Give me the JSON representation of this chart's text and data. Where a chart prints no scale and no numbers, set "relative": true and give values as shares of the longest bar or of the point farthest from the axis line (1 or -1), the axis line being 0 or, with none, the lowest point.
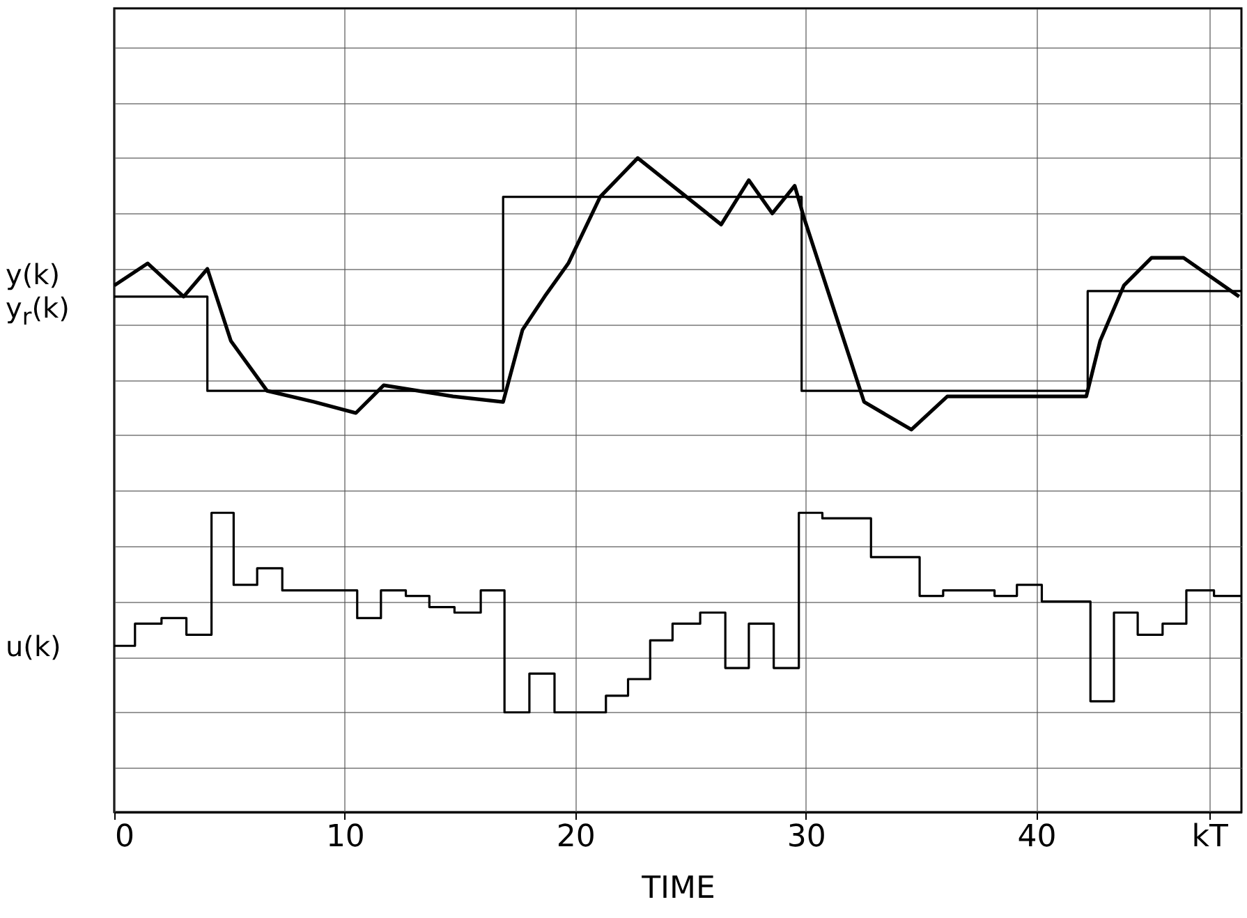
{
  "chart_data": {
    "type": "line",
    "relative": true,
    "xlabel": "TIME",
    "grid": true,
    "xlim": [
      0,
      48.9
    ],
    "xticks": [
      0,
      10,
      20,
      30,
      40,
      {
        "value": 47.5,
        "label": "kT"
      }
    ],
    "series": [
      {
        "name": "y(k)",
        "color": "#000000",
        "x": [
          0,
          1.45,
          3.01,
          4.04,
          5.06,
          6.63,
          8.67,
          10.48,
          11.69,
          14.7,
          16.87,
          17.71,
          18.67,
          19.7,
          21.08,
          22.71,
          24.52,
          26.33,
          27.53,
          28.55,
          29.52,
          29.94,
          30.96,
          32.53,
          34.58,
          36.14,
          39.4,
          42.17,
          42.77,
          43.8,
          45.0,
          46.39,
          48.8
        ],
        "values": [
          0.77,
          0.81,
          0.75,
          0.8,
          0.67,
          0.58,
          0.56,
          0.54,
          0.59,
          0.57,
          0.56,
          0.69,
          0.75,
          0.81,
          0.93,
          1,
          0.94,
          0.88,
          0.96,
          0.9,
          0.95,
          0.89,
          0.76,
          0.56,
          0.51,
          0.57,
          0.57,
          0.57,
          0.67,
          0.77,
          0.82,
          0.82,
          0.75
        ]
      },
      {
        "name": "y$_{r}$(k)",
        "color": "#000000",
        "type": "step",
        "x": [
          0,
          4.04,
          16.87,
          29.82,
          42.23,
          48.9
        ],
        "values": [
          0.75,
          0.58,
          0.93,
          0.58,
          0.76,
          0.76
        ]
      },
      {
        "name": "u(k)",
        "color": "#000000",
        "type": "step",
        "x": [
          0,
          0.9,
          2.05,
          3.13,
          4.22,
          5.18,
          6.2,
          7.29,
          10.54,
          11.57,
          12.65,
          13.67,
          14.76,
          15.9,
          16.93,
          18.01,
          19.1,
          21.33,
          22.29,
          23.25,
          24.22,
          25.42,
          26.51,
          27.53,
          28.61,
          29.7,
          30.72,
          32.83,
          34.94,
          35.96,
          38.19,
          39.16,
          40.24,
          42.35,
          43.37,
          44.4,
          45.48,
          46.51,
          47.71,
          48.9
        ],
        "values": [
          0.12,
          0.16,
          0.17,
          0.14,
          0.36,
          0.23,
          0.26,
          0.22,
          0.17,
          0.22,
          0.21,
          0.19,
          0.18,
          0.22,
          0,
          0.07,
          0,
          0.03,
          0.06,
          0.13,
          0.16,
          0.18,
          0.08,
          0.16,
          0.08,
          0.36,
          0.35,
          0.28,
          0.21,
          0.22,
          0.21,
          0.23,
          0.2,
          0.02,
          0.18,
          0.14,
          0.16,
          0.22,
          0.21,
          0.21
        ]
      }
    ]
  }
}
